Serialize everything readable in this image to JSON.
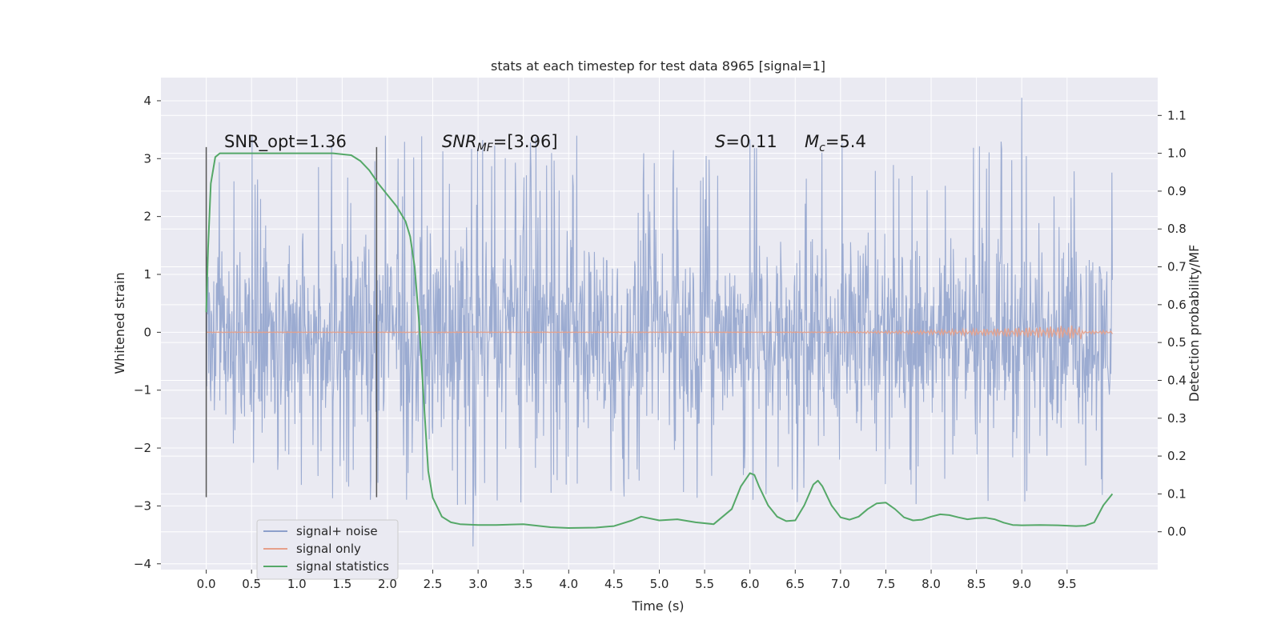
{
  "chart_data": {
    "type": "line",
    "title": "stats at each timestep for test data 8965 [signal=1]",
    "xlabel": "Time (s)",
    "ylabel": "Whitened strain",
    "y2label": "Detection probability/MF",
    "xlim": [
      -0.5,
      10.5
    ],
    "ylim": [
      -4.1,
      4.4
    ],
    "y2lim": [
      -0.1,
      1.2
    ],
    "x_ticks": [
      "0.0",
      "0.5",
      "1.0",
      "1.5",
      "2.0",
      "2.5",
      "3.0",
      "3.5",
      "4.0",
      "4.5",
      "5.0",
      "5.5",
      "6.0",
      "6.5",
      "7.0",
      "7.5",
      "8.0",
      "8.5",
      "9.0",
      "9.5"
    ],
    "y_ticks": [
      "4",
      "3",
      "2",
      "1",
      "0",
      "−1",
      "−2",
      "−3",
      "−4"
    ],
    "y2_ticks": [
      "1.1",
      "1.0",
      "0.9",
      "0.8",
      "0.7",
      "0.6",
      "0.5",
      "0.4",
      "0.3",
      "0.2",
      "0.1",
      "0.0"
    ],
    "grid": true,
    "legend_position": "bottom-left",
    "series": [
      {
        "name": "signal+ noise",
        "color": "#8da0cb",
        "x_range": [
          0,
          10
        ],
        "band_typical": [
          -1.5,
          1.4
        ],
        "peak_max": 4.05,
        "peak_min": -3.7
      },
      {
        "name": "signal only",
        "color": "#e6a08a",
        "x_range": [
          0,
          10
        ],
        "values_at_end": [
          -0.1,
          0.1
        ],
        "chirp_peak_x": 9.65
      },
      {
        "name": "signal statistics",
        "color": "#55a868",
        "axis": "right",
        "x": [
          0.0,
          0.02,
          0.05,
          0.1,
          0.15,
          0.2,
          0.3,
          0.5,
          1.0,
          1.4,
          1.6,
          1.7,
          1.8,
          1.9,
          2.0,
          2.1,
          2.2,
          2.25,
          2.3,
          2.35,
          2.4,
          2.45,
          2.5,
          2.6,
          2.7,
          2.8,
          3.0,
          3.2,
          3.5,
          3.8,
          4.0,
          4.3,
          4.5,
          4.7,
          4.8,
          5.0,
          5.2,
          5.4,
          5.6,
          5.8,
          5.9,
          6.0,
          6.05,
          6.1,
          6.2,
          6.3,
          6.4,
          6.5,
          6.6,
          6.7,
          6.75,
          6.8,
          6.9,
          7.0,
          7.1,
          7.2,
          7.3,
          7.4,
          7.5,
          7.6,
          7.7,
          7.8,
          7.9,
          8.0,
          8.1,
          8.2,
          8.3,
          8.4,
          8.5,
          8.6,
          8.7,
          8.8,
          8.9,
          9.0,
          9.2,
          9.4,
          9.6,
          9.7,
          9.8,
          9.9,
          10.0
        ],
        "values": [
          0.58,
          0.75,
          0.92,
          0.99,
          1.0,
          1.0,
          1.0,
          1.0,
          1.0,
          1.0,
          0.995,
          0.98,
          0.955,
          0.92,
          0.89,
          0.86,
          0.82,
          0.78,
          0.7,
          0.55,
          0.35,
          0.16,
          0.09,
          0.04,
          0.025,
          0.02,
          0.018,
          0.018,
          0.02,
          0.012,
          0.01,
          0.011,
          0.015,
          0.03,
          0.04,
          0.03,
          0.033,
          0.025,
          0.02,
          0.06,
          0.12,
          0.155,
          0.15,
          0.12,
          0.07,
          0.04,
          0.028,
          0.03,
          0.07,
          0.125,
          0.135,
          0.12,
          0.07,
          0.038,
          0.032,
          0.04,
          0.06,
          0.075,
          0.077,
          0.06,
          0.038,
          0.03,
          0.032,
          0.04,
          0.046,
          0.044,
          0.038,
          0.033,
          0.036,
          0.037,
          0.033,
          0.024,
          0.018,
          0.017,
          0.018,
          0.017,
          0.015,
          0.016,
          0.025,
          0.07,
          0.1
        ]
      }
    ],
    "vertical_markers": [
      {
        "x": 0.0,
        "y_from": -2.85,
        "y_to": 3.2
      },
      {
        "x": 1.88,
        "y_from": -2.85,
        "y_to": 3.2
      }
    ],
    "annotations": {
      "snr_opt": "SNR_opt=1.36",
      "snr_mf_base": "SNR",
      "snr_mf_sub": "MF",
      "snr_mf_rest": "=[3.96]",
      "s_base": "S",
      "s_rest": "=0.11",
      "mc_base": "M",
      "mc_sub": "c",
      "mc_rest": "=5.4"
    },
    "colors": {
      "plot_bg": "#eaeaf2",
      "grid": "#ffffff",
      "noise": "#8da0cb",
      "signal": "#e6a08a",
      "stat": "#55a868",
      "marker": "#555555"
    }
  }
}
